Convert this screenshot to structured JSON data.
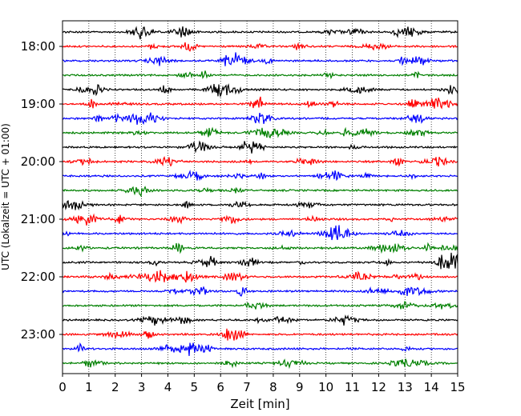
{
  "chart_data": {
    "type": "line",
    "title": "",
    "xlabel": "Zeit  [min]",
    "ylabel": "UTC (Lokalzeit = UTC + 01:00)",
    "xlim": [
      0,
      15
    ],
    "x_ticks": [
      "0",
      "1",
      "2",
      "3",
      "4",
      "5",
      "6",
      "7",
      "8",
      "9",
      "10",
      "11",
      "12",
      "13",
      "14",
      "15"
    ],
    "y_tick_labels": [
      "18:00",
      "19:00",
      "20:00",
      "21:00",
      "22:00",
      "23:00"
    ],
    "grid": "vertical dotted lines at each minute",
    "line_color_cycle": [
      "#000000",
      "#ff0000",
      "#0000ff",
      "#008000"
    ],
    "rows": [
      {
        "start": "17:45",
        "color": "#000000"
      },
      {
        "start": "18:00",
        "color": "#ff0000"
      },
      {
        "start": "18:15",
        "color": "#0000ff"
      },
      {
        "start": "18:30",
        "color": "#008000"
      },
      {
        "start": "18:45",
        "color": "#000000"
      },
      {
        "start": "19:00",
        "color": "#ff0000"
      },
      {
        "start": "19:15",
        "color": "#0000ff"
      },
      {
        "start": "19:30",
        "color": "#008000"
      },
      {
        "start": "19:45",
        "color": "#000000"
      },
      {
        "start": "20:00",
        "color": "#ff0000"
      },
      {
        "start": "20:15",
        "color": "#0000ff"
      },
      {
        "start": "20:30",
        "color": "#008000"
      },
      {
        "start": "20:45",
        "color": "#000000"
      },
      {
        "start": "21:00",
        "color": "#ff0000"
      },
      {
        "start": "21:15",
        "color": "#0000ff"
      },
      {
        "start": "21:30",
        "color": "#008000"
      },
      {
        "start": "21:45",
        "color": "#000000"
      },
      {
        "start": "22:00",
        "color": "#ff0000"
      },
      {
        "start": "22:15",
        "color": "#0000ff"
      },
      {
        "start": "22:30",
        "color": "#008000"
      },
      {
        "start": "22:45",
        "color": "#000000"
      },
      {
        "start": "23:00",
        "color": "#ff0000"
      },
      {
        "start": "23:15",
        "color": "#0000ff"
      },
      {
        "start": "23:30",
        "color": "#008000"
      }
    ]
  }
}
